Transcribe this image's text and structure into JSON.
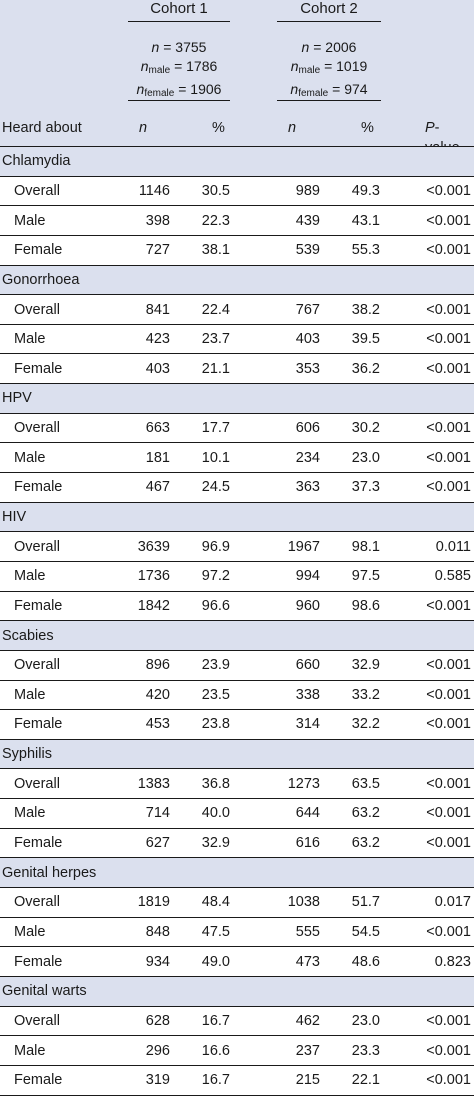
{
  "header": {
    "cohort1": {
      "title": "Cohort 1",
      "n_label": "n",
      "n_value": " = 3755",
      "n_male_label": "n",
      "n_male_sub": "male",
      "n_male_value": " = 1786",
      "n_female_label": "n",
      "n_female_sub": "female",
      "n_female_value": " = 1906"
    },
    "cohort2": {
      "title": "Cohort 2",
      "n_label": "n",
      "n_value": " = 2006",
      "n_male_label": "n",
      "n_male_sub": "male",
      "n_male_value": " = 1019",
      "n_female_label": "n",
      "n_female_sub": "female",
      "n_female_value": " = 974"
    },
    "columns": {
      "heard_about": "Heard about",
      "n1": "n",
      "pct1": "%",
      "n2": "n",
      "pct2": "%",
      "p_italic": "P",
      "p_rest": "-value"
    }
  },
  "sections": [
    {
      "name": "Chlamydia",
      "rows": [
        {
          "label": "Overall",
          "n1": "1146",
          "pct1": "30.5",
          "n2": "989",
          "pct2": "49.3",
          "p": "<0.001"
        },
        {
          "label": "Male",
          "n1": "398",
          "pct1": "22.3",
          "n2": "439",
          "pct2": "43.1",
          "p": "<0.001"
        },
        {
          "label": "Female",
          "n1": "727",
          "pct1": "38.1",
          "n2": "539",
          "pct2": "55.3",
          "p": "<0.001"
        }
      ]
    },
    {
      "name": "Gonorrhoea",
      "rows": [
        {
          "label": "Overall",
          "n1": "841",
          "pct1": "22.4",
          "n2": "767",
          "pct2": "38.2",
          "p": "<0.001"
        },
        {
          "label": "Male",
          "n1": "423",
          "pct1": "23.7",
          "n2": "403",
          "pct2": "39.5",
          "p": "<0.001"
        },
        {
          "label": "Female",
          "n1": "403",
          "pct1": "21.1",
          "n2": "353",
          "pct2": "36.2",
          "p": "<0.001"
        }
      ]
    },
    {
      "name": "HPV",
      "rows": [
        {
          "label": "Overall",
          "n1": "663",
          "pct1": "17.7",
          "n2": "606",
          "pct2": "30.2",
          "p": "<0.001"
        },
        {
          "label": "Male",
          "n1": "181",
          "pct1": "10.1",
          "n2": "234",
          "pct2": "23.0",
          "p": "<0.001"
        },
        {
          "label": "Female",
          "n1": "467",
          "pct1": "24.5",
          "n2": "363",
          "pct2": "37.3",
          "p": "<0.001"
        }
      ]
    },
    {
      "name": "HIV",
      "rows": [
        {
          "label": "Overall",
          "n1": "3639",
          "pct1": "96.9",
          "n2": "1967",
          "pct2": "98.1",
          "p": "0.011"
        },
        {
          "label": "Male",
          "n1": "1736",
          "pct1": "97.2",
          "n2": "994",
          "pct2": "97.5",
          "p": "0.585"
        },
        {
          "label": "Female",
          "n1": "1842",
          "pct1": "96.6",
          "n2": "960",
          "pct2": "98.6",
          "p": "<0.001"
        }
      ]
    },
    {
      "name": "Scabies",
      "rows": [
        {
          "label": "Overall",
          "n1": "896",
          "pct1": "23.9",
          "n2": "660",
          "pct2": "32.9",
          "p": "<0.001"
        },
        {
          "label": "Male",
          "n1": "420",
          "pct1": "23.5",
          "n2": "338",
          "pct2": "33.2",
          "p": "<0.001"
        },
        {
          "label": "Female",
          "n1": "453",
          "pct1": "23.8",
          "n2": "314",
          "pct2": "32.2",
          "p": "<0.001"
        }
      ]
    },
    {
      "name": "Syphilis",
      "rows": [
        {
          "label": "Overall",
          "n1": "1383",
          "pct1": "36.8",
          "n2": "1273",
          "pct2": "63.5",
          "p": "<0.001"
        },
        {
          "label": "Male",
          "n1": "714",
          "pct1": "40.0",
          "n2": "644",
          "pct2": "63.2",
          "p": "<0.001"
        },
        {
          "label": "Female",
          "n1": "627",
          "pct1": "32.9",
          "n2": "616",
          "pct2": "63.2",
          "p": "<0.001"
        }
      ]
    },
    {
      "name": "Genital herpes",
      "rows": [
        {
          "label": "Overall",
          "n1": "1819",
          "pct1": "48.4",
          "n2": "1038",
          "pct2": "51.7",
          "p": "0.017"
        },
        {
          "label": "Male",
          "n1": "848",
          "pct1": "47.5",
          "n2": "555",
          "pct2": "54.5",
          "p": "<0.001"
        },
        {
          "label": "Female",
          "n1": "934",
          "pct1": "49.0",
          "n2": "473",
          "pct2": "48.6",
          "p": "0.823"
        }
      ]
    },
    {
      "name": "Genital warts",
      "rows": [
        {
          "label": "Overall",
          "n1": "628",
          "pct1": "16.7",
          "n2": "462",
          "pct2": "23.0",
          "p": "<0.001"
        },
        {
          "label": "Male",
          "n1": "296",
          "pct1": "16.6",
          "n2": "237",
          "pct2": "23.3",
          "p": "<0.001"
        },
        {
          "label": "Female",
          "n1": "319",
          "pct1": "16.7",
          "n2": "215",
          "pct2": "22.1",
          "p": "<0.001"
        }
      ]
    }
  ]
}
